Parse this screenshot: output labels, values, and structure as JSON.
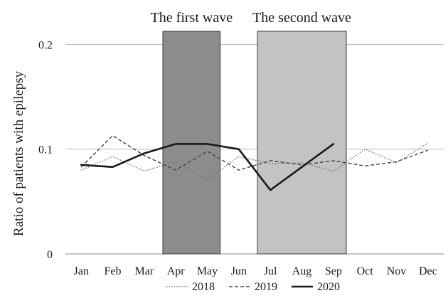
{
  "chart_data": {
    "type": "line",
    "title": "",
    "xlabel": "",
    "ylabel": "Ratio of patients with epilepsy",
    "ylim": [
      0,
      0.22
    ],
    "yticks": [
      0,
      0.1,
      0.2
    ],
    "ytick_labels": [
      "0",
      "0.1",
      "0.2"
    ],
    "grid": "horizontal",
    "legend_position": "bottom",
    "categories": [
      "Jan",
      "Feb",
      "Mar",
      "Apr",
      "May",
      "Jun",
      "Jul",
      "Aug",
      "Sep",
      "Oct",
      "Nov",
      "Dec"
    ],
    "series": [
      {
        "name": "2018",
        "line_style": "dotted",
        "color": "#777777",
        "values": [
          0.08,
          0.093,
          0.079,
          0.088,
          0.071,
          0.093,
          0.086,
          0.087,
          0.079,
          0.1,
          0.087,
          0.106
        ]
      },
      {
        "name": "2019",
        "line_style": "dashed",
        "color": "#444444",
        "values": [
          0.083,
          0.113,
          0.094,
          0.08,
          0.098,
          0.08,
          0.089,
          0.085,
          0.089,
          0.084,
          0.088,
          0.099
        ]
      },
      {
        "name": "2020",
        "line_style": "solid",
        "color": "#1a1a1a",
        "values": [
          0.085,
          0.083,
          0.096,
          0.105,
          0.105,
          0.1,
          0.061,
          null,
          0.105,
          null,
          null,
          null
        ]
      }
    ],
    "bands": [
      {
        "label": "The first wave",
        "from": "Apr",
        "to": "May",
        "color": "#8c8c8c"
      },
      {
        "label": "The second wave",
        "from": "Jul",
        "to": "Sep",
        "color": "#c3c3c3"
      }
    ]
  }
}
